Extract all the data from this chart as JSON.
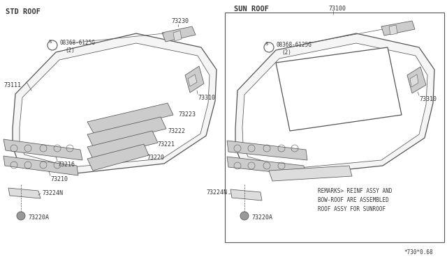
{
  "bg_color": "#ffffff",
  "line_color": "#555555",
  "text_color": "#333333",
  "title_left": "STD ROOF",
  "title_right": "SUN ROOF",
  "part_number_right": "73100",
  "bolt_label": "08368-6125G",
  "bolt_qty": "(2)",
  "footer": "*730*0.68",
  "remarks_line1": "REMARKS> REINF ASSY AND",
  "remarks_line2": "BOW-ROOF ARE ASSEMBLED",
  "remarks_line3": "ROOF ASSY FOR SUNROOF"
}
